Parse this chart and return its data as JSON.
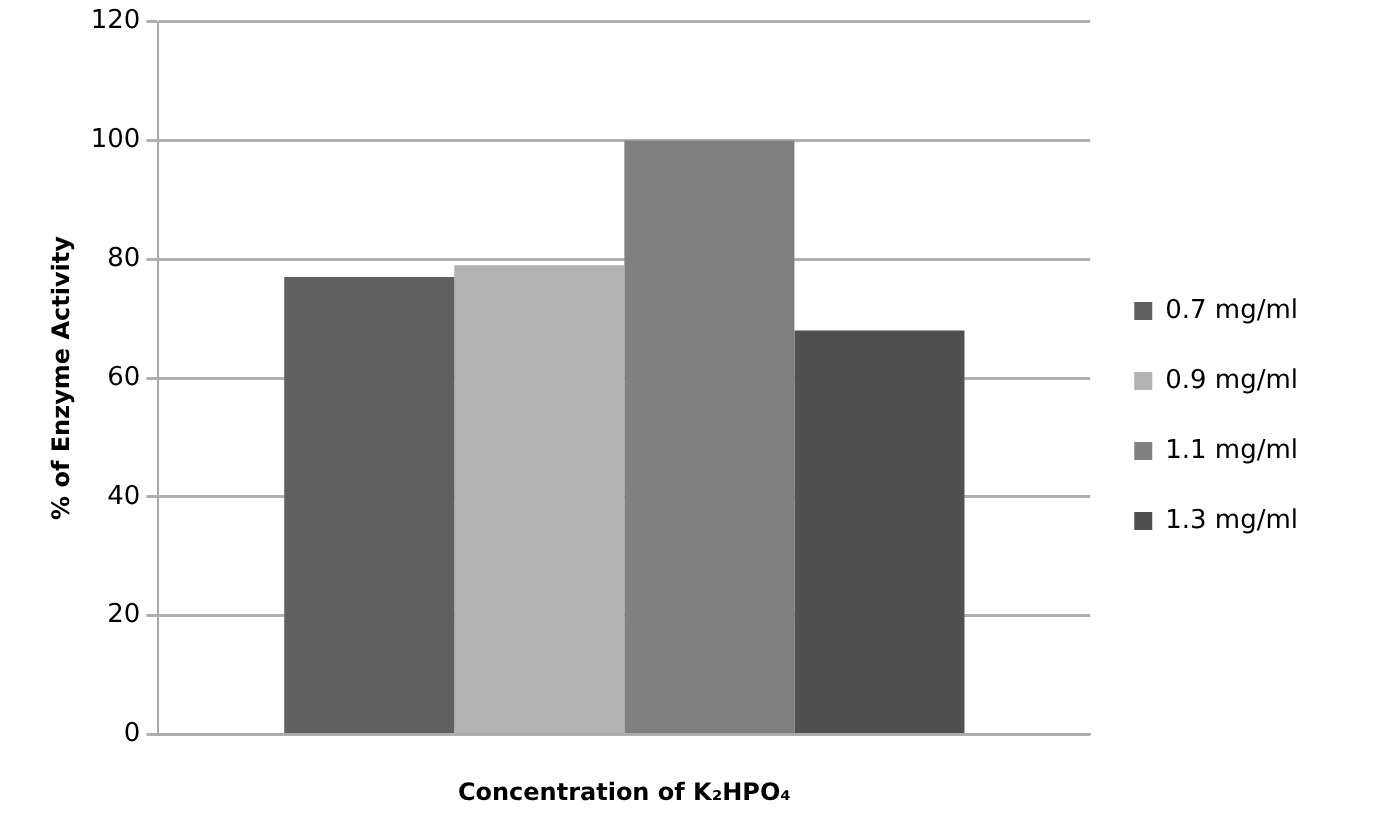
{
  "chart_data": {
    "type": "bar",
    "xlabel": "Concentration of K₂HPO₄",
    "ylabel": "% of Enzyme Activity",
    "categories": [
      null
    ],
    "series": [
      {
        "name": "0.7 mg/ml",
        "color": "#606060",
        "values": [
          77
        ]
      },
      {
        "name": "0.9 mg/ml",
        "color": "#b2b2b2",
        "values": [
          79
        ]
      },
      {
        "name": "1.1 mg/ml",
        "color": "#808080",
        "values": [
          100
        ]
      },
      {
        "name": "1.3 mg/ml",
        "color": "#505050",
        "values": [
          68
        ]
      }
    ],
    "ylim": [
      0,
      120
    ],
    "yticks": [
      0,
      20,
      40,
      60,
      80,
      100,
      120
    ],
    "grid": "y",
    "legend": "right"
  }
}
